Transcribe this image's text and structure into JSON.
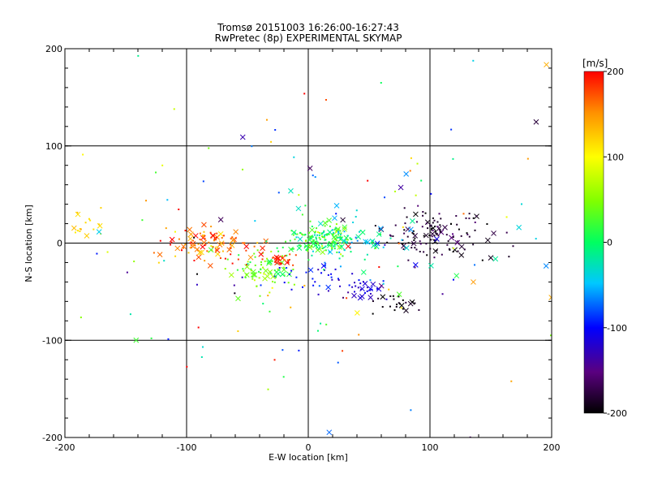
{
  "chart_data": {
    "type": "scatter",
    "title": "Tromsø 20151003 16:26:00-16:27:43",
    "subtitle": "RwPretec (8p) EXPERIMENTAL SKYMAP",
    "xlabel": "E-W location [km]",
    "ylabel": "N-S location [km]",
    "xlim": [
      -200,
      200
    ],
    "ylim": [
      -200,
      200
    ],
    "xticks": [
      "-200",
      "-100",
      "0",
      "100",
      "200"
    ],
    "yticks": [
      "-200",
      "-100",
      "0",
      "100",
      "200"
    ],
    "grid_lines": [
      -100,
      0,
      100
    ],
    "colorbar": {
      "label": "[m/s]",
      "range": [
        -200,
        200
      ],
      "ticks": [
        "200",
        "100",
        "0",
        "-100",
        "-200"
      ],
      "colormap": "rainbow (black-purple-blue-cyan-green-yellow-orange-red)"
    },
    "clusters": [
      {
        "name": "NE dense cluster",
        "center": [
          105,
          10
        ],
        "spread": [
          22,
          12
        ],
        "count": 130,
        "v_mean": -185,
        "v_sd": 15
      },
      {
        "name": "Central green cluster",
        "center": [
          10,
          2
        ],
        "spread": [
          14,
          8
        ],
        "count": 150,
        "v_mean": 20,
        "v_sd": 22
      },
      {
        "name": "Central cyan cluster",
        "center": [
          25,
          5
        ],
        "spread": [
          25,
          12
        ],
        "count": 80,
        "v_mean": -25,
        "v_sd": 25
      },
      {
        "name": "West red/orange band",
        "center": [
          -80,
          0
        ],
        "spread": [
          22,
          8
        ],
        "count": 110,
        "v_mean": 165,
        "v_sd": 28
      },
      {
        "name": "South-central green",
        "center": [
          -35,
          -30
        ],
        "spread": [
          14,
          10
        ],
        "count": 70,
        "v_mean": 40,
        "v_sd": 25
      },
      {
        "name": "Red patch",
        "center": [
          -25,
          -18
        ],
        "spread": [
          6,
          3
        ],
        "count": 30,
        "v_mean": 185,
        "v_sd": 12
      },
      {
        "name": "SE blue cluster",
        "center": [
          45,
          -48
        ],
        "spread": [
          14,
          6
        ],
        "count": 35,
        "v_mean": -120,
        "v_sd": 15
      },
      {
        "name": "SE black cluster",
        "center": [
          75,
          -62
        ],
        "spread": [
          10,
          5
        ],
        "count": 25,
        "v_mean": -195,
        "v_sd": 8
      },
      {
        "name": "Blue arc",
        "center": [
          5,
          -35
        ],
        "spread": [
          15,
          8
        ],
        "count": 25,
        "v_mean": -100,
        "v_sd": 15
      },
      {
        "name": "Far west yellow",
        "center": [
          -185,
          20
        ],
        "spread": [
          8,
          10
        ],
        "count": 18,
        "v_mean": 115,
        "v_sd": 10
      },
      {
        "name": "Scattered background",
        "center": [
          0,
          0
        ],
        "spread": [
          120,
          80
        ],
        "count": 160,
        "v_mean": 0,
        "v_sd": 120
      }
    ]
  }
}
